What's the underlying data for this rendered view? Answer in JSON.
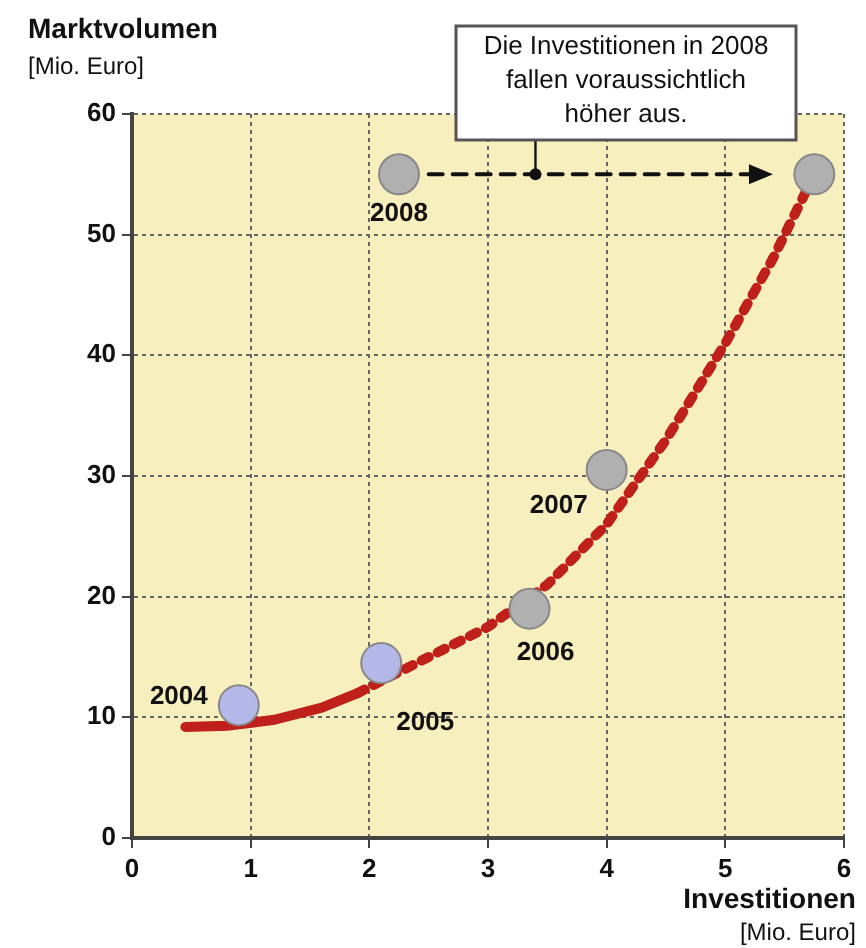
{
  "chart_data": {
    "type": "scatter",
    "xlabel": "Investitionen\n[Mio. Euro]",
    "ylabel": "Marktvolumen\n[Mio. Euro]",
    "xlim": [
      0,
      6
    ],
    "xticks": [
      0,
      1,
      2,
      3,
      4,
      5,
      6
    ],
    "ylim": [
      0,
      60
    ],
    "yticks": [
      0,
      10,
      20,
      30,
      40,
      50,
      60
    ],
    "grid": true,
    "series": [
      {
        "type": "line",
        "color": "#c0201a",
        "line_style": "solid",
        "marker": "none",
        "x": [
          0.45,
          0.8,
          1.2,
          1.6,
          1.9
        ],
        "values": [
          9.2,
          9.3,
          9.8,
          10.8,
          12
        ]
      },
      {
        "type": "line",
        "color": "#c0201a",
        "line_style": "dotted",
        "marker": "none",
        "x": [
          1.9,
          2.5,
          3,
          3.5,
          4,
          4.5,
          5,
          5.4,
          5.7
        ],
        "values": [
          12,
          15,
          17.5,
          21,
          26,
          33,
          41,
          48,
          54
        ]
      },
      {
        "type": "line",
        "color": "#111111",
        "line_style": "dashed",
        "marker": "triangle",
        "x": [
          2.5,
          5.3
        ],
        "values": [
          55,
          55
        ]
      },
      {
        "marker": "circle",
        "x": [
          0.9,
          2.1,
          3.35,
          4,
          2.25,
          5.75
        ],
        "values": [
          11,
          14.5,
          19,
          30.5,
          55,
          55
        ],
        "colors": [
          "#b4b8e8",
          "#b4b8e8",
          "#b0b0b0",
          "#b0b0b0",
          "#b0b0b0",
          "#b0b0b0"
        ]
      }
    ],
    "annotations": [
      {
        "text": "Die Investitionen in 2008 fallen voraussichtlich höher aus.",
        "x": 3.4,
        "y": 55
      },
      {
        "text": "2004",
        "x": 0.9,
        "y": 11
      },
      {
        "text": "2005",
        "x": 2.1,
        "y": 14.5
      },
      {
        "text": "2006",
        "x": 3.35,
        "y": 19
      },
      {
        "text": "2007",
        "x": 4,
        "y": 30.5
      },
      {
        "text": "2008",
        "x": 2.25,
        "y": 55
      }
    ]
  }
}
